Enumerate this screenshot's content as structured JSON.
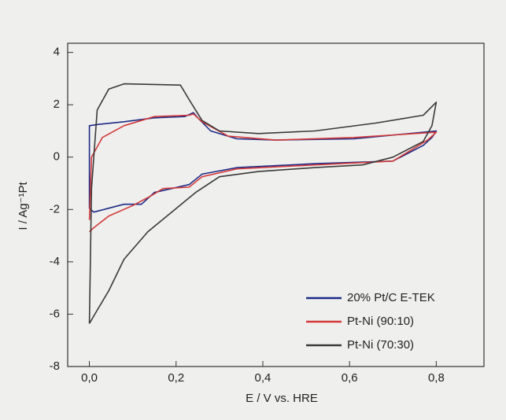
{
  "chart_data": {
    "type": "line",
    "xlabel": "E / V vs. HRE",
    "ylabel": "I / Ag⁻¹Pt",
    "xlim": [
      -0.05,
      0.91
    ],
    "ylim": [
      -8,
      4.35
    ],
    "xticks": [
      {
        "value": 0,
        "label": "0,0"
      },
      {
        "value": 0.2,
        "label": "0,2"
      },
      {
        "value": 0.4,
        "label": "0,4"
      },
      {
        "value": 0.6,
        "label": "0,6"
      },
      {
        "value": 0.8,
        "label": "0,8"
      }
    ],
    "yticks": [
      -8,
      -6,
      -4,
      -2,
      0,
      2,
      4
    ],
    "legend": "lower right",
    "series": [
      {
        "name": "20% Pt/C  E-TEK",
        "color": "#1c2a86",
        "x": [
          0,
          0,
          0.02,
          0.08,
          0.15,
          0.22,
          0.24,
          0.25,
          0.28,
          0.34,
          0.43,
          0.61,
          0.8,
          0.79,
          0.77,
          0.7,
          0.52,
          0.34,
          0.26,
          0.23,
          0.19,
          0.15,
          0.12,
          0.08,
          0.045,
          0.01,
          0,
          0
        ],
        "values": [
          -0.3,
          1.2,
          1.25,
          1.35,
          1.5,
          1.55,
          1.7,
          1.5,
          1.0,
          0.7,
          0.65,
          0.7,
          1.0,
          0.75,
          0.45,
          -0.15,
          -0.25,
          -0.4,
          -0.65,
          -1.05,
          -1.2,
          -1.35,
          -1.8,
          -1.8,
          -1.95,
          -2.1,
          -1.95,
          -0.3
        ]
      },
      {
        "name": "Pt-Ni (90:10)",
        "color": "#d23a3a",
        "x": [
          0,
          0.005,
          0.03,
          0.08,
          0.15,
          0.23,
          0.24,
          0.26,
          0.32,
          0.43,
          0.61,
          0.8,
          0.78,
          0.7,
          0.52,
          0.34,
          0.26,
          0.23,
          0.17,
          0.14,
          0.1,
          0.045,
          0.01,
          0
        ],
        "values": [
          -2.4,
          0,
          0.75,
          1.2,
          1.55,
          1.6,
          1.65,
          1.35,
          0.8,
          0.65,
          0.75,
          0.95,
          0.65,
          -0.15,
          -0.3,
          -0.45,
          -0.75,
          -1.15,
          -1.2,
          -1.5,
          -1.85,
          -2.25,
          -2.7,
          -2.85
        ]
      },
      {
        "name": "Pt-Ni (70:30)",
        "color": "#3a3a3a",
        "x": [
          0,
          0.005,
          0.018,
          0.045,
          0.08,
          0.21,
          0.23,
          0.26,
          0.3,
          0.39,
          0.52,
          0.66,
          0.77,
          0.8,
          0.79,
          0.77,
          0.7,
          0.63,
          0.52,
          0.39,
          0.3,
          0.245,
          0.19,
          0.135,
          0.08,
          0.045,
          0.018,
          0
        ],
        "values": [
          -6.36,
          -1.2,
          1.8,
          2.6,
          2.8,
          2.75,
          2.2,
          1.4,
          1.0,
          0.9,
          1.0,
          1.3,
          1.6,
          2.1,
          1.2,
          0.6,
          0,
          -0.3,
          -0.4,
          -0.55,
          -0.75,
          -1.35,
          -2.1,
          -2.85,
          -3.9,
          -5.1,
          -5.85,
          -6.36
        ]
      }
    ]
  }
}
